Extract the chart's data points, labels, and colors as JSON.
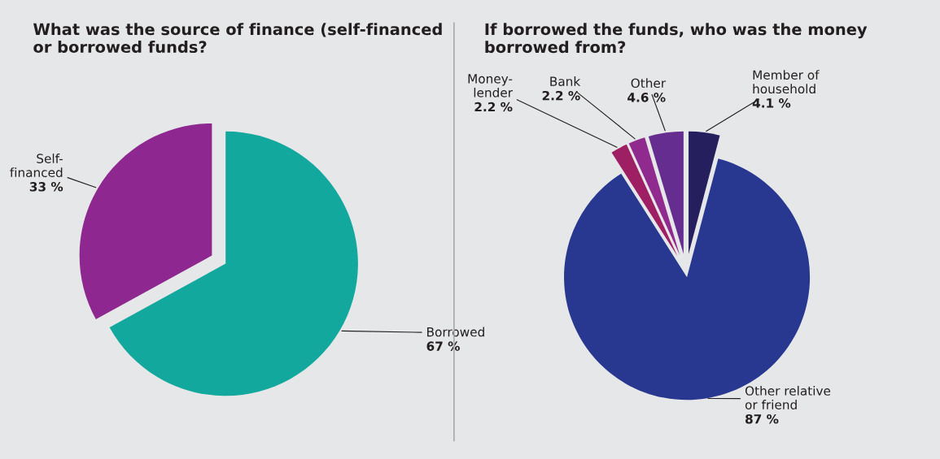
{
  "chart_data": [
    {
      "type": "pie",
      "title": "What was the source of finance (self-financed\nor borrowed funds?",
      "categories": [
        "Borrowed",
        "Self-\nfinanced"
      ],
      "values": [
        67,
        33
      ],
      "value_labels": [
        "67 %",
        "33 %"
      ],
      "colors": [
        "#12a89d",
        "#8e278f"
      ]
    },
    {
      "type": "pie",
      "title": "If borrowed the funds, who was the money\nborrowed from?",
      "categories": [
        "Member of\nhousehold",
        "Other relative\nor friend",
        "Money-\nlender",
        "Bank",
        "Other"
      ],
      "values": [
        4.1,
        87,
        2.2,
        2.2,
        4.6
      ],
      "value_labels": [
        "4.1 %",
        "87 %",
        "2.2 %",
        "2.2 %",
        "4.6 %"
      ],
      "colors": [
        "#251f5e",
        "#283891",
        "#9e1f63",
        "#912a8e",
        "#662d91"
      ]
    }
  ]
}
